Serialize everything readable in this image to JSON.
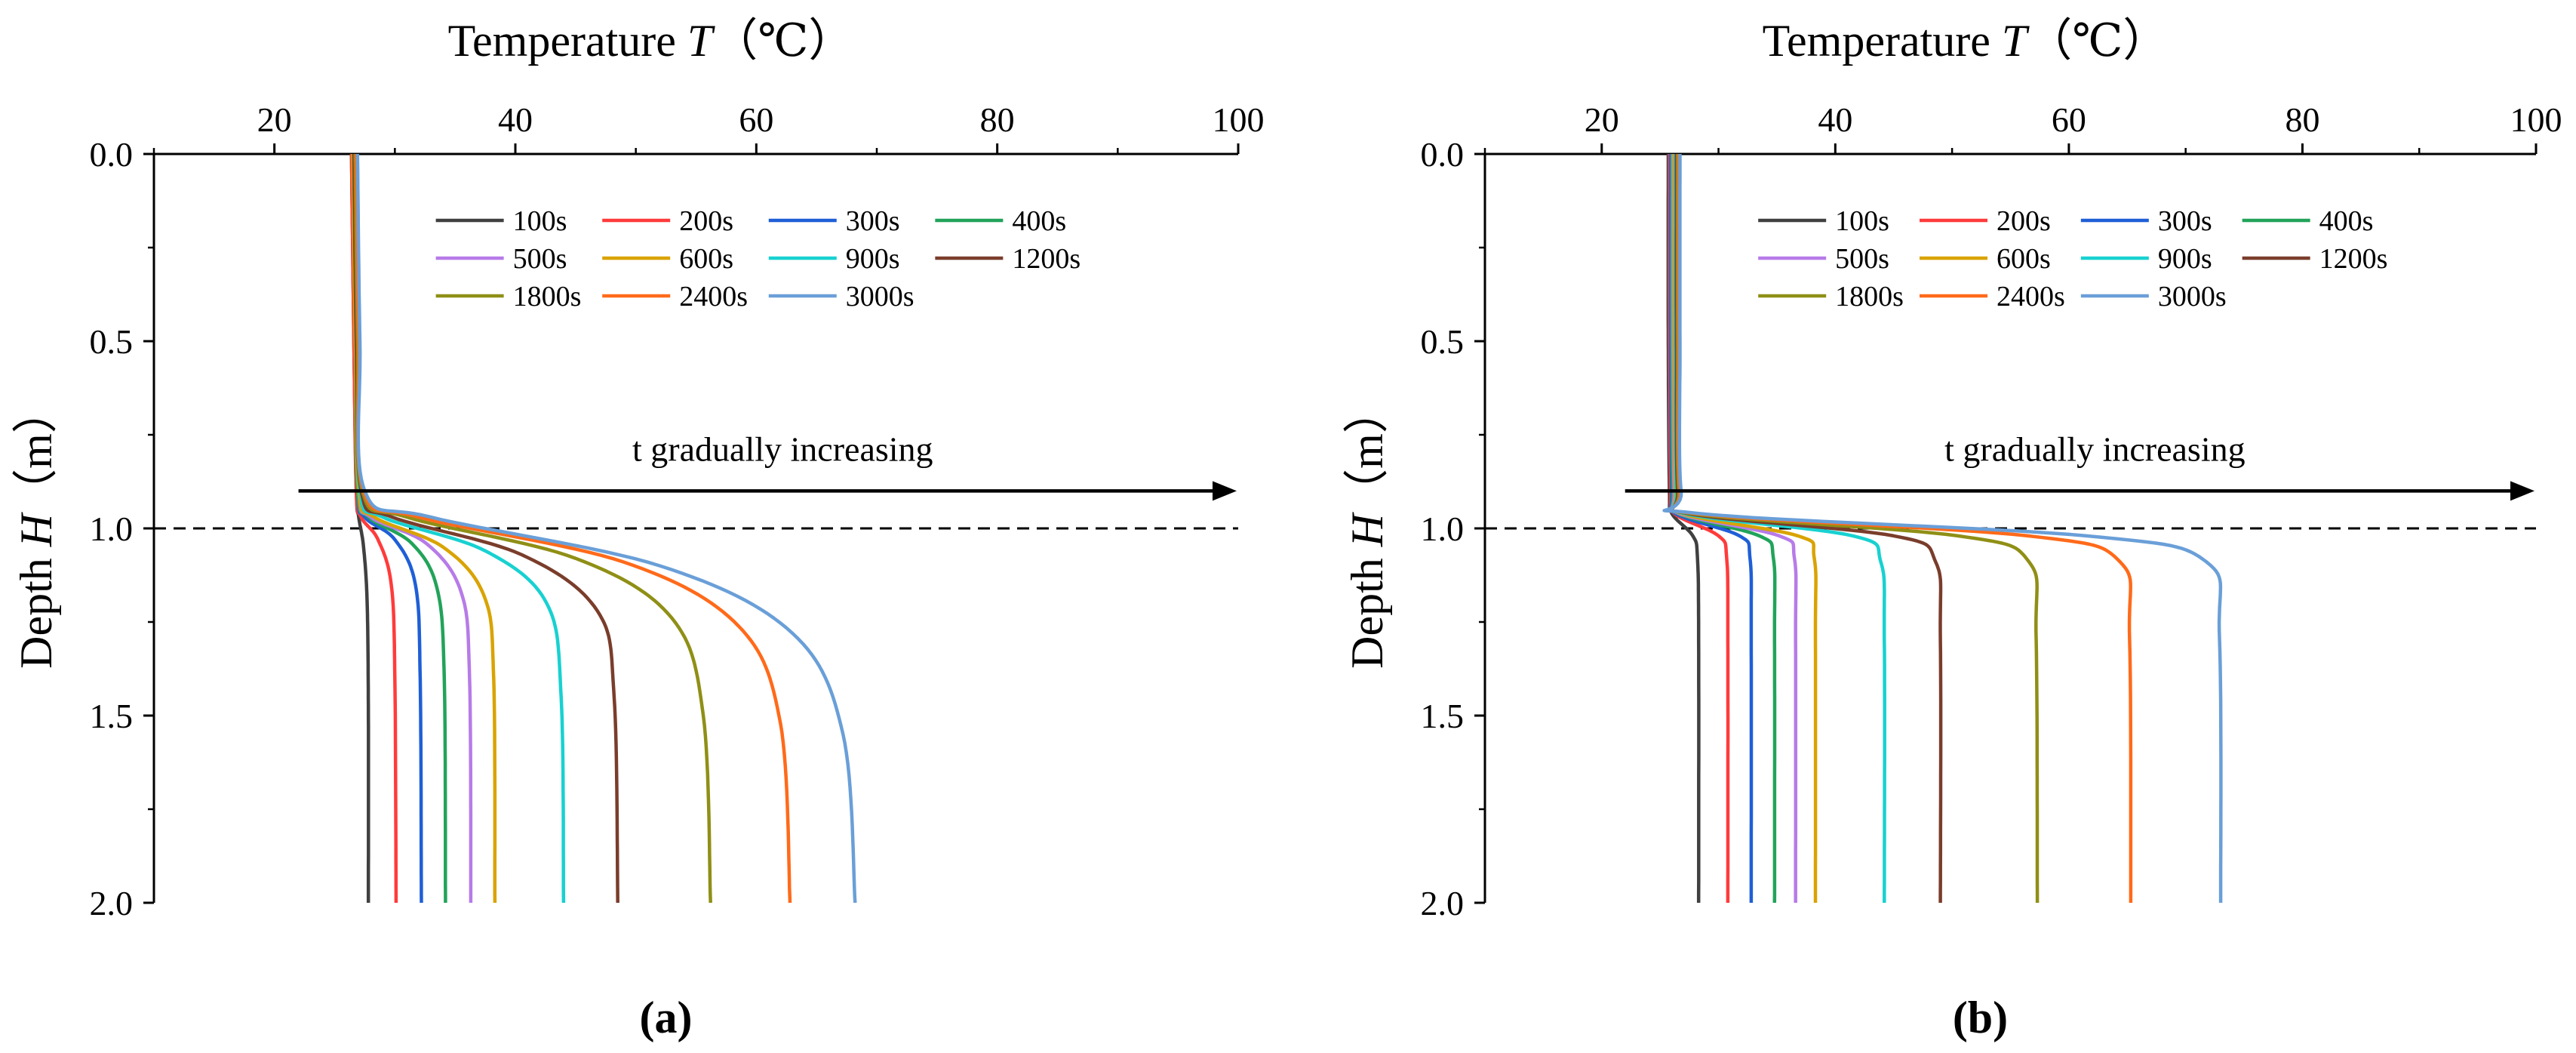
{
  "figure": {
    "panel_labels": [
      "(a)",
      "(b)"
    ],
    "xaxis_title": {
      "name": "Temperature",
      "symbol": "T",
      "unit": "（℃）"
    },
    "yaxis_title": {
      "name": "Depth",
      "symbol": "H",
      "unit": "（m）"
    },
    "annotation": "t gradually increasing"
  },
  "chart_data": [
    {
      "type": "line",
      "panel": "(a)",
      "xlabel": "Temperature T（℃）",
      "ylabel": "Depth H（m）",
      "xlim": [
        10,
        100
      ],
      "ylim": [
        2.0,
        0.0
      ],
      "x_axis_position": "top",
      "y_inverted": true,
      "xticks": [
        20,
        40,
        60,
        80,
        100
      ],
      "yticks": [
        0.0,
        0.5,
        1.0,
        1.5,
        2.0
      ],
      "grid": false,
      "legend_position": "top-right",
      "reference_line": {
        "y": 1.0,
        "style": "dashed",
        "color": "#000000"
      },
      "arrow": {
        "from": [
          22,
          0.9
        ],
        "to": [
          100,
          0.9
        ],
        "label": "t gradually increasing"
      },
      "series": [
        {
          "name": "100s",
          "color": "#404040",
          "surface_T": 26.4,
          "bottom_T": 27.8,
          "curve": [
            [
              26.4,
              0.0
            ],
            [
              26.6,
              0.5
            ],
            [
              26.8,
              0.9
            ],
            [
              27.0,
              0.97
            ],
            [
              27.4,
              1.05
            ],
            [
              27.7,
              1.2
            ],
            [
              27.8,
              1.5
            ],
            [
              27.8,
              2.0
            ]
          ]
        },
        {
          "name": "200s",
          "color": "#ff3b3b",
          "surface_T": 26.4,
          "bottom_T": 30.1,
          "curve": [
            [
              26.4,
              0.0
            ],
            [
              26.6,
              0.5
            ],
            [
              26.8,
              0.9
            ],
            [
              27.2,
              0.97
            ],
            [
              28.6,
              1.03
            ],
            [
              29.7,
              1.15
            ],
            [
              30.0,
              1.4
            ],
            [
              30.1,
              2.0
            ]
          ]
        },
        {
          "name": "300s",
          "color": "#1f5fd6",
          "surface_T": 26.5,
          "bottom_T": 32.2,
          "curve": [
            [
              26.5,
              0.0
            ],
            [
              26.7,
              0.5
            ],
            [
              26.9,
              0.9
            ],
            [
              27.5,
              0.97
            ],
            [
              30.0,
              1.03
            ],
            [
              31.7,
              1.15
            ],
            [
              32.1,
              1.4
            ],
            [
              32.2,
              2.0
            ]
          ]
        },
        {
          "name": "400s",
          "color": "#22a35a",
          "surface_T": 26.5,
          "bottom_T": 34.2,
          "curve": [
            [
              26.5,
              0.0
            ],
            [
              26.7,
              0.5
            ],
            [
              26.9,
              0.9
            ],
            [
              27.8,
              0.97
            ],
            [
              31.4,
              1.04
            ],
            [
              33.5,
              1.16
            ],
            [
              34.1,
              1.4
            ],
            [
              34.2,
              2.0
            ]
          ]
        },
        {
          "name": "500s",
          "color": "#b77be8",
          "surface_T": 26.5,
          "bottom_T": 36.3,
          "curve": [
            [
              26.5,
              0.0
            ],
            [
              26.7,
              0.5
            ],
            [
              27.0,
              0.9
            ],
            [
              28.0,
              0.97
            ],
            [
              32.6,
              1.04
            ],
            [
              35.5,
              1.17
            ],
            [
              36.2,
              1.4
            ],
            [
              36.3,
              2.0
            ]
          ]
        },
        {
          "name": "600s",
          "color": "#d9a300",
          "surface_T": 26.5,
          "bottom_T": 38.3,
          "curve": [
            [
              26.5,
              0.0
            ],
            [
              26.7,
              0.5
            ],
            [
              27.0,
              0.9
            ],
            [
              28.3,
              0.97
            ],
            [
              34.0,
              1.05
            ],
            [
              37.4,
              1.18
            ],
            [
              38.2,
              1.4
            ],
            [
              38.3,
              2.0
            ]
          ]
        },
        {
          "name": "900s",
          "color": "#18d1d1",
          "surface_T": 26.6,
          "bottom_T": 44.0,
          "curve": [
            [
              26.6,
              0.0
            ],
            [
              26.8,
              0.5
            ],
            [
              27.1,
              0.9
            ],
            [
              29.0,
              0.97
            ],
            [
              37.5,
              1.06
            ],
            [
              42.6,
              1.2
            ],
            [
              43.8,
              1.45
            ],
            [
              44.0,
              2.0
            ]
          ]
        },
        {
          "name": "1200s",
          "color": "#7a3d2b",
          "surface_T": 26.6,
          "bottom_T": 48.5,
          "curve": [
            [
              26.6,
              0.0
            ],
            [
              26.8,
              0.5
            ],
            [
              27.2,
              0.9
            ],
            [
              29.8,
              0.97
            ],
            [
              40.5,
              1.07
            ],
            [
              46.8,
              1.22
            ],
            [
              48.2,
              1.45
            ],
            [
              48.5,
              2.0
            ]
          ]
        },
        {
          "name": "1800s",
          "color": "#8f8f16",
          "surface_T": 26.7,
          "bottom_T": 56.2,
          "curve": [
            [
              26.7,
              0.0
            ],
            [
              26.9,
              0.5
            ],
            [
              27.3,
              0.9
            ],
            [
              31.0,
              0.97
            ],
            [
              45.0,
              1.08
            ],
            [
              53.0,
              1.24
            ],
            [
              55.6,
              1.5
            ],
            [
              56.2,
              2.0
            ]
          ]
        },
        {
          "name": "2400s",
          "color": "#ff6a1a",
          "surface_T": 26.8,
          "bottom_T": 62.8,
          "curve": [
            [
              26.8,
              0.0
            ],
            [
              27.0,
              0.5
            ],
            [
              27.4,
              0.9
            ],
            [
              32.0,
              0.97
            ],
            [
              49.0,
              1.09
            ],
            [
              58.5,
              1.26
            ],
            [
              62.0,
              1.52
            ],
            [
              62.8,
              2.0
            ]
          ]
        },
        {
          "name": "3000s",
          "color": "#6a9fd8",
          "surface_T": 26.9,
          "bottom_T": 68.2,
          "curve": [
            [
              26.9,
              0.0
            ],
            [
              27.1,
              0.5
            ],
            [
              27.5,
              0.9
            ],
            [
              33.0,
              0.97
            ],
            [
              52.0,
              1.1
            ],
            [
              63.0,
              1.28
            ],
            [
              67.2,
              1.55
            ],
            [
              68.2,
              2.0
            ]
          ]
        }
      ]
    },
    {
      "type": "line",
      "panel": "(b)",
      "xlabel": "Temperature T（℃）",
      "ylabel": "Depth H（m）",
      "xlim": [
        10,
        100
      ],
      "ylim": [
        2.0,
        0.0
      ],
      "x_axis_position": "top",
      "y_inverted": true,
      "xticks": [
        20,
        40,
        60,
        80,
        100
      ],
      "yticks": [
        0.0,
        0.5,
        1.0,
        1.5,
        2.0
      ],
      "grid": false,
      "legend_position": "top-right",
      "reference_line": {
        "y": 1.0,
        "style": "dashed",
        "color": "#000000"
      },
      "arrow": {
        "from": [
          22,
          0.9
        ],
        "to": [
          100,
          0.9
        ],
        "label": "t gradually increasing"
      },
      "series": [
        {
          "name": "100s",
          "color": "#404040",
          "surface_T": 25.7,
          "bottom_T": 28.3,
          "curve": [
            [
              25.7,
              0.0
            ],
            [
              25.7,
              0.5
            ],
            [
              25.8,
              0.9
            ],
            [
              26.0,
              0.96
            ],
            [
              27.8,
              1.02
            ],
            [
              28.2,
              1.08
            ],
            [
              28.3,
              1.3
            ],
            [
              28.3,
              2.0
            ]
          ]
        },
        {
          "name": "200s",
          "color": "#ff3b3b",
          "surface_T": 25.8,
          "bottom_T": 30.8,
          "curve": [
            [
              25.8,
              0.0
            ],
            [
              25.8,
              0.5
            ],
            [
              25.9,
              0.9
            ],
            [
              26.2,
              0.96
            ],
            [
              30.0,
              1.02
            ],
            [
              30.7,
              1.08
            ],
            [
              30.8,
              1.3
            ],
            [
              30.8,
              2.0
            ]
          ]
        },
        {
          "name": "300s",
          "color": "#1f5fd6",
          "surface_T": 25.9,
          "bottom_T": 32.8,
          "curve": [
            [
              25.9,
              0.0
            ],
            [
              25.9,
              0.5
            ],
            [
              26.0,
              0.9
            ],
            [
              26.3,
              0.96
            ],
            [
              31.8,
              1.02
            ],
            [
              32.7,
              1.08
            ],
            [
              32.8,
              1.3
            ],
            [
              32.8,
              2.0
            ]
          ]
        },
        {
          "name": "400s",
          "color": "#22a35a",
          "surface_T": 26.0,
          "bottom_T": 34.8,
          "curve": [
            [
              26.0,
              0.0
            ],
            [
              26.0,
              0.5
            ],
            [
              26.1,
              0.9
            ],
            [
              26.5,
              0.96
            ],
            [
              33.5,
              1.02
            ],
            [
              34.7,
              1.08
            ],
            [
              34.8,
              1.3
            ],
            [
              34.8,
              2.0
            ]
          ]
        },
        {
          "name": "500s",
          "color": "#b77be8",
          "surface_T": 26.1,
          "bottom_T": 36.6,
          "curve": [
            [
              26.1,
              0.0
            ],
            [
              26.1,
              0.5
            ],
            [
              26.2,
              0.9
            ],
            [
              26.6,
              0.96
            ],
            [
              35.2,
              1.02
            ],
            [
              36.5,
              1.08
            ],
            [
              36.6,
              1.3
            ],
            [
              36.6,
              2.0
            ]
          ]
        },
        {
          "name": "600s",
          "color": "#d9a300",
          "surface_T": 26.2,
          "bottom_T": 38.3,
          "curve": [
            [
              26.2,
              0.0
            ],
            [
              26.2,
              0.5
            ],
            [
              26.3,
              0.9
            ],
            [
              26.8,
              0.96
            ],
            [
              36.8,
              1.02
            ],
            [
              38.2,
              1.08
            ],
            [
              38.3,
              1.3
            ],
            [
              38.3,
              2.0
            ]
          ]
        },
        {
          "name": "900s",
          "color": "#18d1d1",
          "surface_T": 26.3,
          "bottom_T": 44.2,
          "curve": [
            [
              26.3,
              0.0
            ],
            [
              26.3,
              0.5
            ],
            [
              26.4,
              0.9
            ],
            [
              27.0,
              0.96
            ],
            [
              41.5,
              1.02
            ],
            [
              43.9,
              1.09
            ],
            [
              44.2,
              1.3
            ],
            [
              44.2,
              2.0
            ]
          ]
        },
        {
          "name": "1200s",
          "color": "#7a3d2b",
          "surface_T": 26.4,
          "bottom_T": 49.0,
          "curve": [
            [
              26.4,
              0.0
            ],
            [
              26.4,
              0.5
            ],
            [
              26.5,
              0.9
            ],
            [
              27.3,
              0.96
            ],
            [
              45.0,
              1.02
            ],
            [
              48.6,
              1.09
            ],
            [
              49.0,
              1.3
            ],
            [
              49.0,
              2.0
            ]
          ]
        },
        {
          "name": "1800s",
          "color": "#8f8f16",
          "surface_T": 26.5,
          "bottom_T": 57.3,
          "curve": [
            [
              26.5,
              0.0
            ],
            [
              26.5,
              0.5
            ],
            [
              26.6,
              0.9
            ],
            [
              27.6,
              0.96
            ],
            [
              50.5,
              1.02
            ],
            [
              56.6,
              1.09
            ],
            [
              57.2,
              1.3
            ],
            [
              57.3,
              2.0
            ]
          ]
        },
        {
          "name": "2400s",
          "color": "#ff6a1a",
          "surface_T": 26.6,
          "bottom_T": 65.3,
          "curve": [
            [
              26.6,
              0.0
            ],
            [
              26.6,
              0.5
            ],
            [
              26.7,
              0.9
            ],
            [
              28.0,
              0.96
            ],
            [
              56.5,
              1.02
            ],
            [
              64.4,
              1.09
            ],
            [
              65.2,
              1.3
            ],
            [
              65.3,
              2.0
            ]
          ]
        },
        {
          "name": "3000s",
          "color": "#6a9fd8",
          "surface_T": 26.7,
          "bottom_T": 73.0,
          "curve": [
            [
              26.7,
              0.0
            ],
            [
              26.7,
              0.5
            ],
            [
              26.8,
              0.9
            ],
            [
              28.3,
              0.96
            ],
            [
              61.5,
              1.02
            ],
            [
              71.8,
              1.09
            ],
            [
              72.9,
              1.3
            ],
            [
              73.0,
              2.0
            ]
          ]
        }
      ]
    }
  ]
}
